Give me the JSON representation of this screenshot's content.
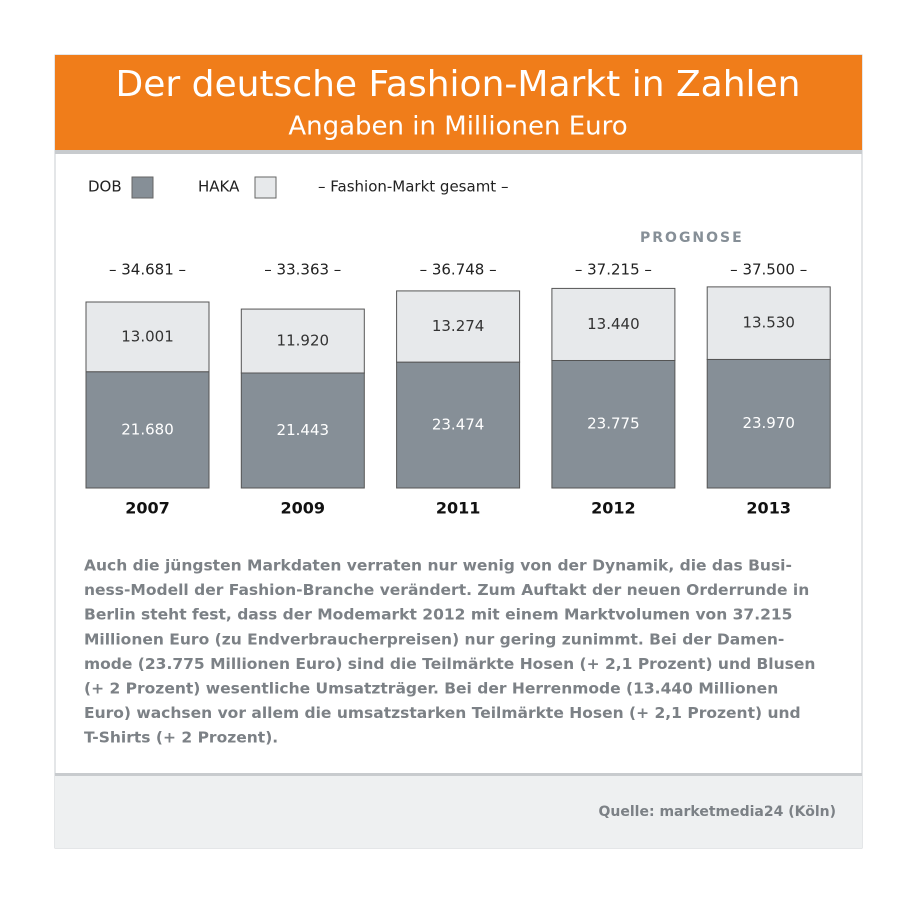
{
  "chart_data": {
    "type": "stacked_bar",
    "title": "Der deutsche Fashion-Markt in Zahlen",
    "subtitle": "Angaben in Millionen Euro",
    "categories": [
      "2007",
      "2009",
      "2011",
      "2012",
      "2013"
    ],
    "series": [
      {
        "name": "DOB",
        "color": "#868f97",
        "values": [
          21680,
          21443,
          23474,
          23775,
          23970
        ],
        "value_labels": [
          "21.680",
          "21.443",
          "23.474",
          "23.775",
          "23.970"
        ]
      },
      {
        "name": "HAKA",
        "color": "#e7e9eb",
        "values": [
          13001,
          11920,
          13274,
          13440,
          13530
        ],
        "value_labels": [
          "13.001",
          "11.920",
          "13.274",
          "13.440",
          "13.530"
        ]
      }
    ],
    "total_legend": "– Fashion-Markt gesamt –",
    "total_labels": [
      "– 34.681 –",
      "– 33.363 –",
      "– 36.748 –",
      "– 37.215 –",
      "– 37.500 –"
    ],
    "annotation": "PROGNOSE"
  },
  "text": {
    "lines": [
      "Auch die jüngsten Markdaten verraten nur wenig von der Dynamik, die das Busi-",
      "ness-Modell der Fashion-Branche verändert. Zum Auftakt der neuen Orderrunde in",
      "Berlin steht fest, dass der Modemarkt 2012 mit einem Marktvolumen von 37.215",
      "Millionen Euro (zu Endverbraucherpreisen) nur gering zunimmt. Bei der Damen-",
      "mode (23.775 Millionen Euro) sind die Teilmärkte Hosen (+ 2,1 Prozent) und Blusen",
      "(+ 2 Prozent) wesentliche Umsatzträger. Bei der Herrenmode (13.440 Millionen",
      "Euro) wachsen vor allem die umsatzstarken Teilmärkte Hosen (+ 2,1 Prozent) und",
      "T-Shirts (+ 2 Prozent)."
    ],
    "source": "Quelle: marketmedia24 (Köln)"
  }
}
